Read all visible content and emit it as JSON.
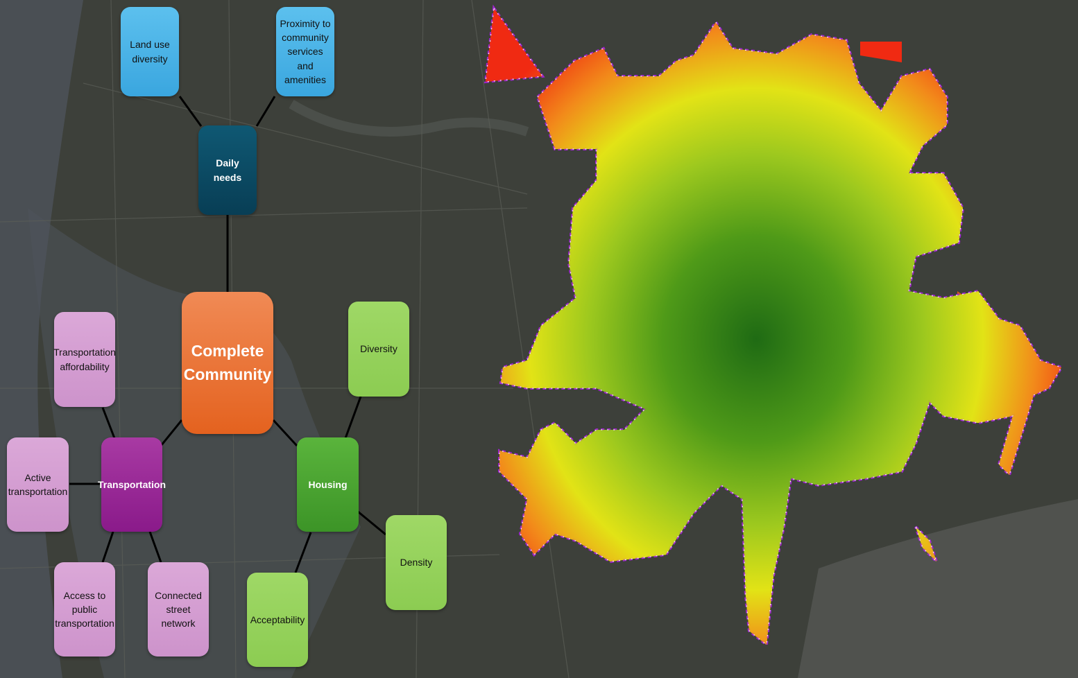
{
  "diagram": {
    "center": "Complete\nCommunity",
    "daily_needs": {
      "label": "Daily needs",
      "children": [
        "Land use\ndiversity",
        "Proximity to\ncommunity\nservices\nand amenities"
      ]
    },
    "transportation": {
      "label": "Transportation",
      "children": [
        "Transportation\naffordability",
        "Active\ntransportation",
        "Access to\npublic\ntransportation",
        "Connected\nstreet network"
      ]
    },
    "housing": {
      "label": "Housing",
      "children": [
        "Diversity",
        "Density",
        "Acceptability"
      ]
    }
  },
  "colors": {
    "map_green_dark": "#1f6b14",
    "map_green": "#6fae1e",
    "map_yellow": "#e2e316",
    "map_orange": "#f28a1a",
    "map_red": "#f02a12",
    "boundary": "#9b27c9",
    "water": "#5a5f5a"
  }
}
